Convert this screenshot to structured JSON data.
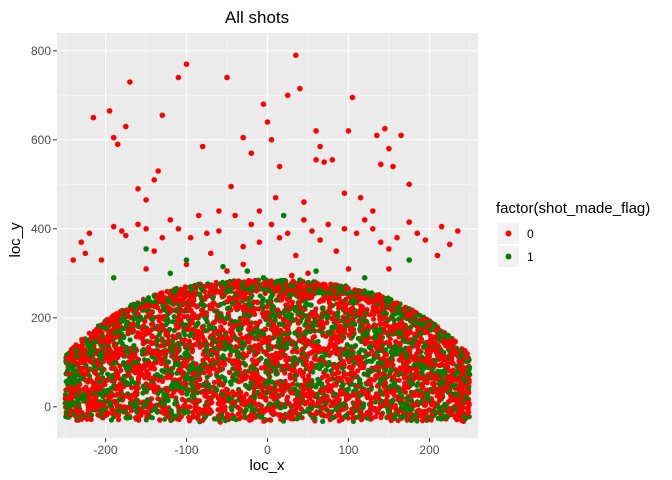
{
  "chart_data": {
    "type": "scatter",
    "title": "All shots",
    "xlabel": "loc_x",
    "ylabel": "loc_y",
    "xlim": [
      -260,
      260
    ],
    "ylim": [
      -70,
      840
    ],
    "x_ticks": [
      -200,
      -100,
      0,
      100,
      200
    ],
    "y_ticks": [
      0,
      200,
      400,
      600,
      800
    ],
    "x_tick_labels": [
      "-200",
      "-100",
      "0",
      "100",
      "200"
    ],
    "y_tick_labels": [
      "0",
      "200",
      "400",
      "600",
      "800"
    ],
    "grid": true,
    "legend": {
      "title": "factor(shot_made_flag)",
      "placement": "right",
      "entries": [
        {
          "label": "0",
          "color": "#ff0000"
        },
        {
          "label": "1",
          "color": "#008000"
        }
      ]
    },
    "series": [
      {
        "label": "0",
        "color": "#ff0000",
        "points": [
          [
            -215,
            650
          ],
          [
            -195,
            665
          ],
          [
            -190,
            605
          ],
          [
            -185,
            590
          ],
          [
            -170,
            730
          ],
          [
            -130,
            655
          ],
          [
            -110,
            740
          ],
          [
            -100,
            770
          ],
          [
            -50,
            740
          ],
          [
            -30,
            605
          ],
          [
            -5,
            680
          ],
          [
            0,
            640
          ],
          [
            5,
            600
          ],
          [
            25,
            700
          ],
          [
            35,
            790
          ],
          [
            40,
            715
          ],
          [
            60,
            620
          ],
          [
            65,
            585
          ],
          [
            100,
            620
          ],
          [
            105,
            695
          ],
          [
            135,
            610
          ],
          [
            145,
            625
          ],
          [
            150,
            580
          ],
          [
            165,
            610
          ],
          [
            140,
            545
          ],
          [
            70,
            550
          ],
          [
            15,
            540
          ],
          [
            -135,
            530
          ],
          [
            -140,
            510
          ],
          [
            -150,
            465
          ],
          [
            -160,
            490
          ],
          [
            -175,
            630
          ],
          [
            -80,
            585
          ],
          [
            -60,
            440
          ],
          [
            -45,
            495
          ],
          [
            -20,
            570
          ],
          [
            -10,
            440
          ],
          [
            10,
            470
          ],
          [
            45,
            460
          ],
          [
            60,
            555
          ],
          [
            80,
            555
          ],
          [
            95,
            480
          ],
          [
            115,
            470
          ],
          [
            130,
            440
          ],
          [
            155,
            540
          ],
          [
            175,
            500
          ],
          [
            -230,
            370
          ],
          [
            -220,
            390
          ],
          [
            -205,
            330
          ],
          [
            -190,
            405
          ],
          [
            -180,
            395
          ],
          [
            -175,
            385
          ],
          [
            -160,
            410
          ],
          [
            -150,
            400
          ],
          [
            -140,
            350
          ],
          [
            -130,
            380
          ],
          [
            -120,
            420
          ],
          [
            -110,
            400
          ],
          [
            -95,
            380
          ],
          [
            -85,
            430
          ],
          [
            -75,
            390
          ],
          [
            -70,
            345
          ],
          [
            -60,
            395
          ],
          [
            -40,
            430
          ],
          [
            -30,
            360
          ],
          [
            -20,
            410
          ],
          [
            -10,
            370
          ],
          [
            5,
            410
          ],
          [
            15,
            380
          ],
          [
            25,
            390
          ],
          [
            35,
            340
          ],
          [
            45,
            420
          ],
          [
            55,
            395
          ],
          [
            65,
            375
          ],
          [
            75,
            410
          ],
          [
            85,
            350
          ],
          [
            95,
            400
          ],
          [
            110,
            390
          ],
          [
            120,
            420
          ],
          [
            130,
            400
          ],
          [
            140,
            370
          ],
          [
            150,
            355
          ],
          [
            160,
            380
          ],
          [
            175,
            415
          ],
          [
            185,
            390
          ],
          [
            195,
            375
          ],
          [
            215,
            405
          ],
          [
            225,
            365
          ],
          [
            235,
            395
          ],
          [
            -240,
            330
          ],
          [
            -225,
            345
          ],
          [
            210,
            340
          ],
          [
            150,
            310
          ],
          [
            -150,
            310
          ],
          [
            -100,
            320
          ],
          [
            -50,
            305
          ],
          [
            50,
            300
          ],
          [
            100,
            310
          ],
          [
            30,
            295
          ],
          [
            -30,
            320
          ]
        ]
      },
      {
        "label": "1",
        "color": "#008000",
        "points": [
          [
            -150,
            355
          ],
          [
            -100,
            330
          ],
          [
            -55,
            315
          ],
          [
            -25,
            305
          ],
          [
            20,
            430
          ],
          [
            60,
            305
          ],
          [
            120,
            290
          ],
          [
            175,
            330
          ],
          [
            -5,
            290
          ],
          [
            40,
            285
          ],
          [
            -120,
            300
          ],
          [
            -190,
            290
          ]
        ]
      }
    ],
    "dense_band": {
      "note_visible": "",
      "x_range": [
        -250,
        250
      ],
      "y_range": [
        -40,
        300
      ]
    }
  }
}
